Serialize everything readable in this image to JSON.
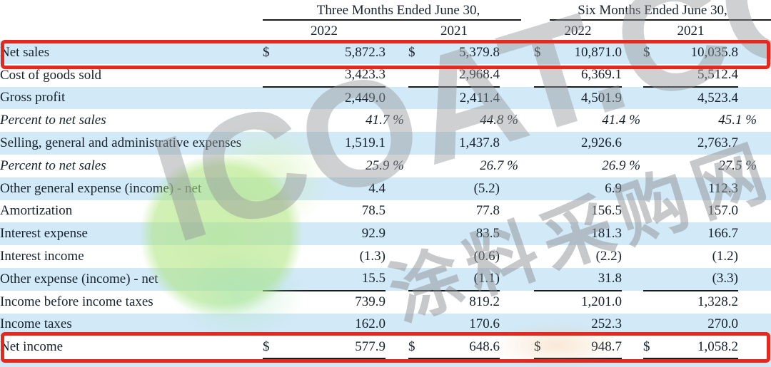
{
  "table": {
    "currency_symbol": "$",
    "col_groups": [
      {
        "label": "Three Months Ended June 30,"
      },
      {
        "label": "Six Months Ended June 30,"
      }
    ],
    "year_headers": [
      "2022",
      "2021",
      "2022",
      "2021"
    ],
    "rows": [
      {
        "label": "Net sales",
        "dollar": true,
        "values": [
          "5,872.3",
          "5,379.8",
          "10,871.0",
          "10,035.8"
        ],
        "shaded": true,
        "highlight": true
      },
      {
        "label": "Cost of goods sold",
        "values": [
          "3,423.3",
          "2,968.4",
          "6,369.1",
          "5,512.4"
        ],
        "rule_below": true
      },
      {
        "label": "Gross profit",
        "values": [
          "2,449.0",
          "2,411.4",
          "4,501.9",
          "4,523.4"
        ],
        "shaded": true
      },
      {
        "label": "Percent to net sales",
        "italic": true,
        "values": [
          "41.7 %",
          "44.8 %",
          "41.4 %",
          "45.1 %"
        ]
      },
      {
        "label": "Selling, general and administrative expenses",
        "values": [
          "1,519.1",
          "1,437.8",
          "2,926.6",
          "2,763.7"
        ],
        "shaded": true
      },
      {
        "label": "Percent to net sales",
        "italic": true,
        "values": [
          "25.9 %",
          "26.7 %",
          "26.9 %",
          "27.5 %"
        ]
      },
      {
        "label": "Other general expense (income) - net",
        "values": [
          "4.4",
          "(5.2)",
          "6.9",
          "112.3"
        ],
        "shaded": true
      },
      {
        "label": "Amortization",
        "values": [
          "78.5",
          "77.8",
          "156.5",
          "157.0"
        ]
      },
      {
        "label": "Interest expense",
        "values": [
          "92.9",
          "83.5",
          "181.3",
          "166.7"
        ],
        "shaded": true
      },
      {
        "label": "Interest income",
        "values": [
          "(1.3)",
          "(0.6)",
          "(2.2)",
          "(1.2)"
        ]
      },
      {
        "label": "Other expense (income) - net",
        "values": [
          "15.5",
          "(1.1)",
          "31.8",
          "(3.3)"
        ],
        "shaded": true,
        "rule_below": true
      },
      {
        "label": "Income before income taxes",
        "values": [
          "739.9",
          "819.2",
          "1,201.0",
          "1,328.2"
        ]
      },
      {
        "label": "Income taxes",
        "values": [
          "162.0",
          "170.6",
          "252.3",
          "270.0"
        ],
        "shaded": true
      },
      {
        "label": "Net income",
        "dollar": true,
        "values": [
          "577.9",
          "648.6",
          "948.7",
          "1,058.2"
        ],
        "highlight": true,
        "rule_below": true
      }
    ]
  },
  "watermark": {
    "text": "ICOAT.CC",
    "cjk_text": "涂料采购网"
  },
  "colors": {
    "row_shade": "#d2e9f7",
    "highlight_border": "#e5291e",
    "rule_line": "#1b1b1b",
    "text": "#17222c",
    "watermark_green": "#ace47a",
    "watermark_grey": "#949799"
  }
}
